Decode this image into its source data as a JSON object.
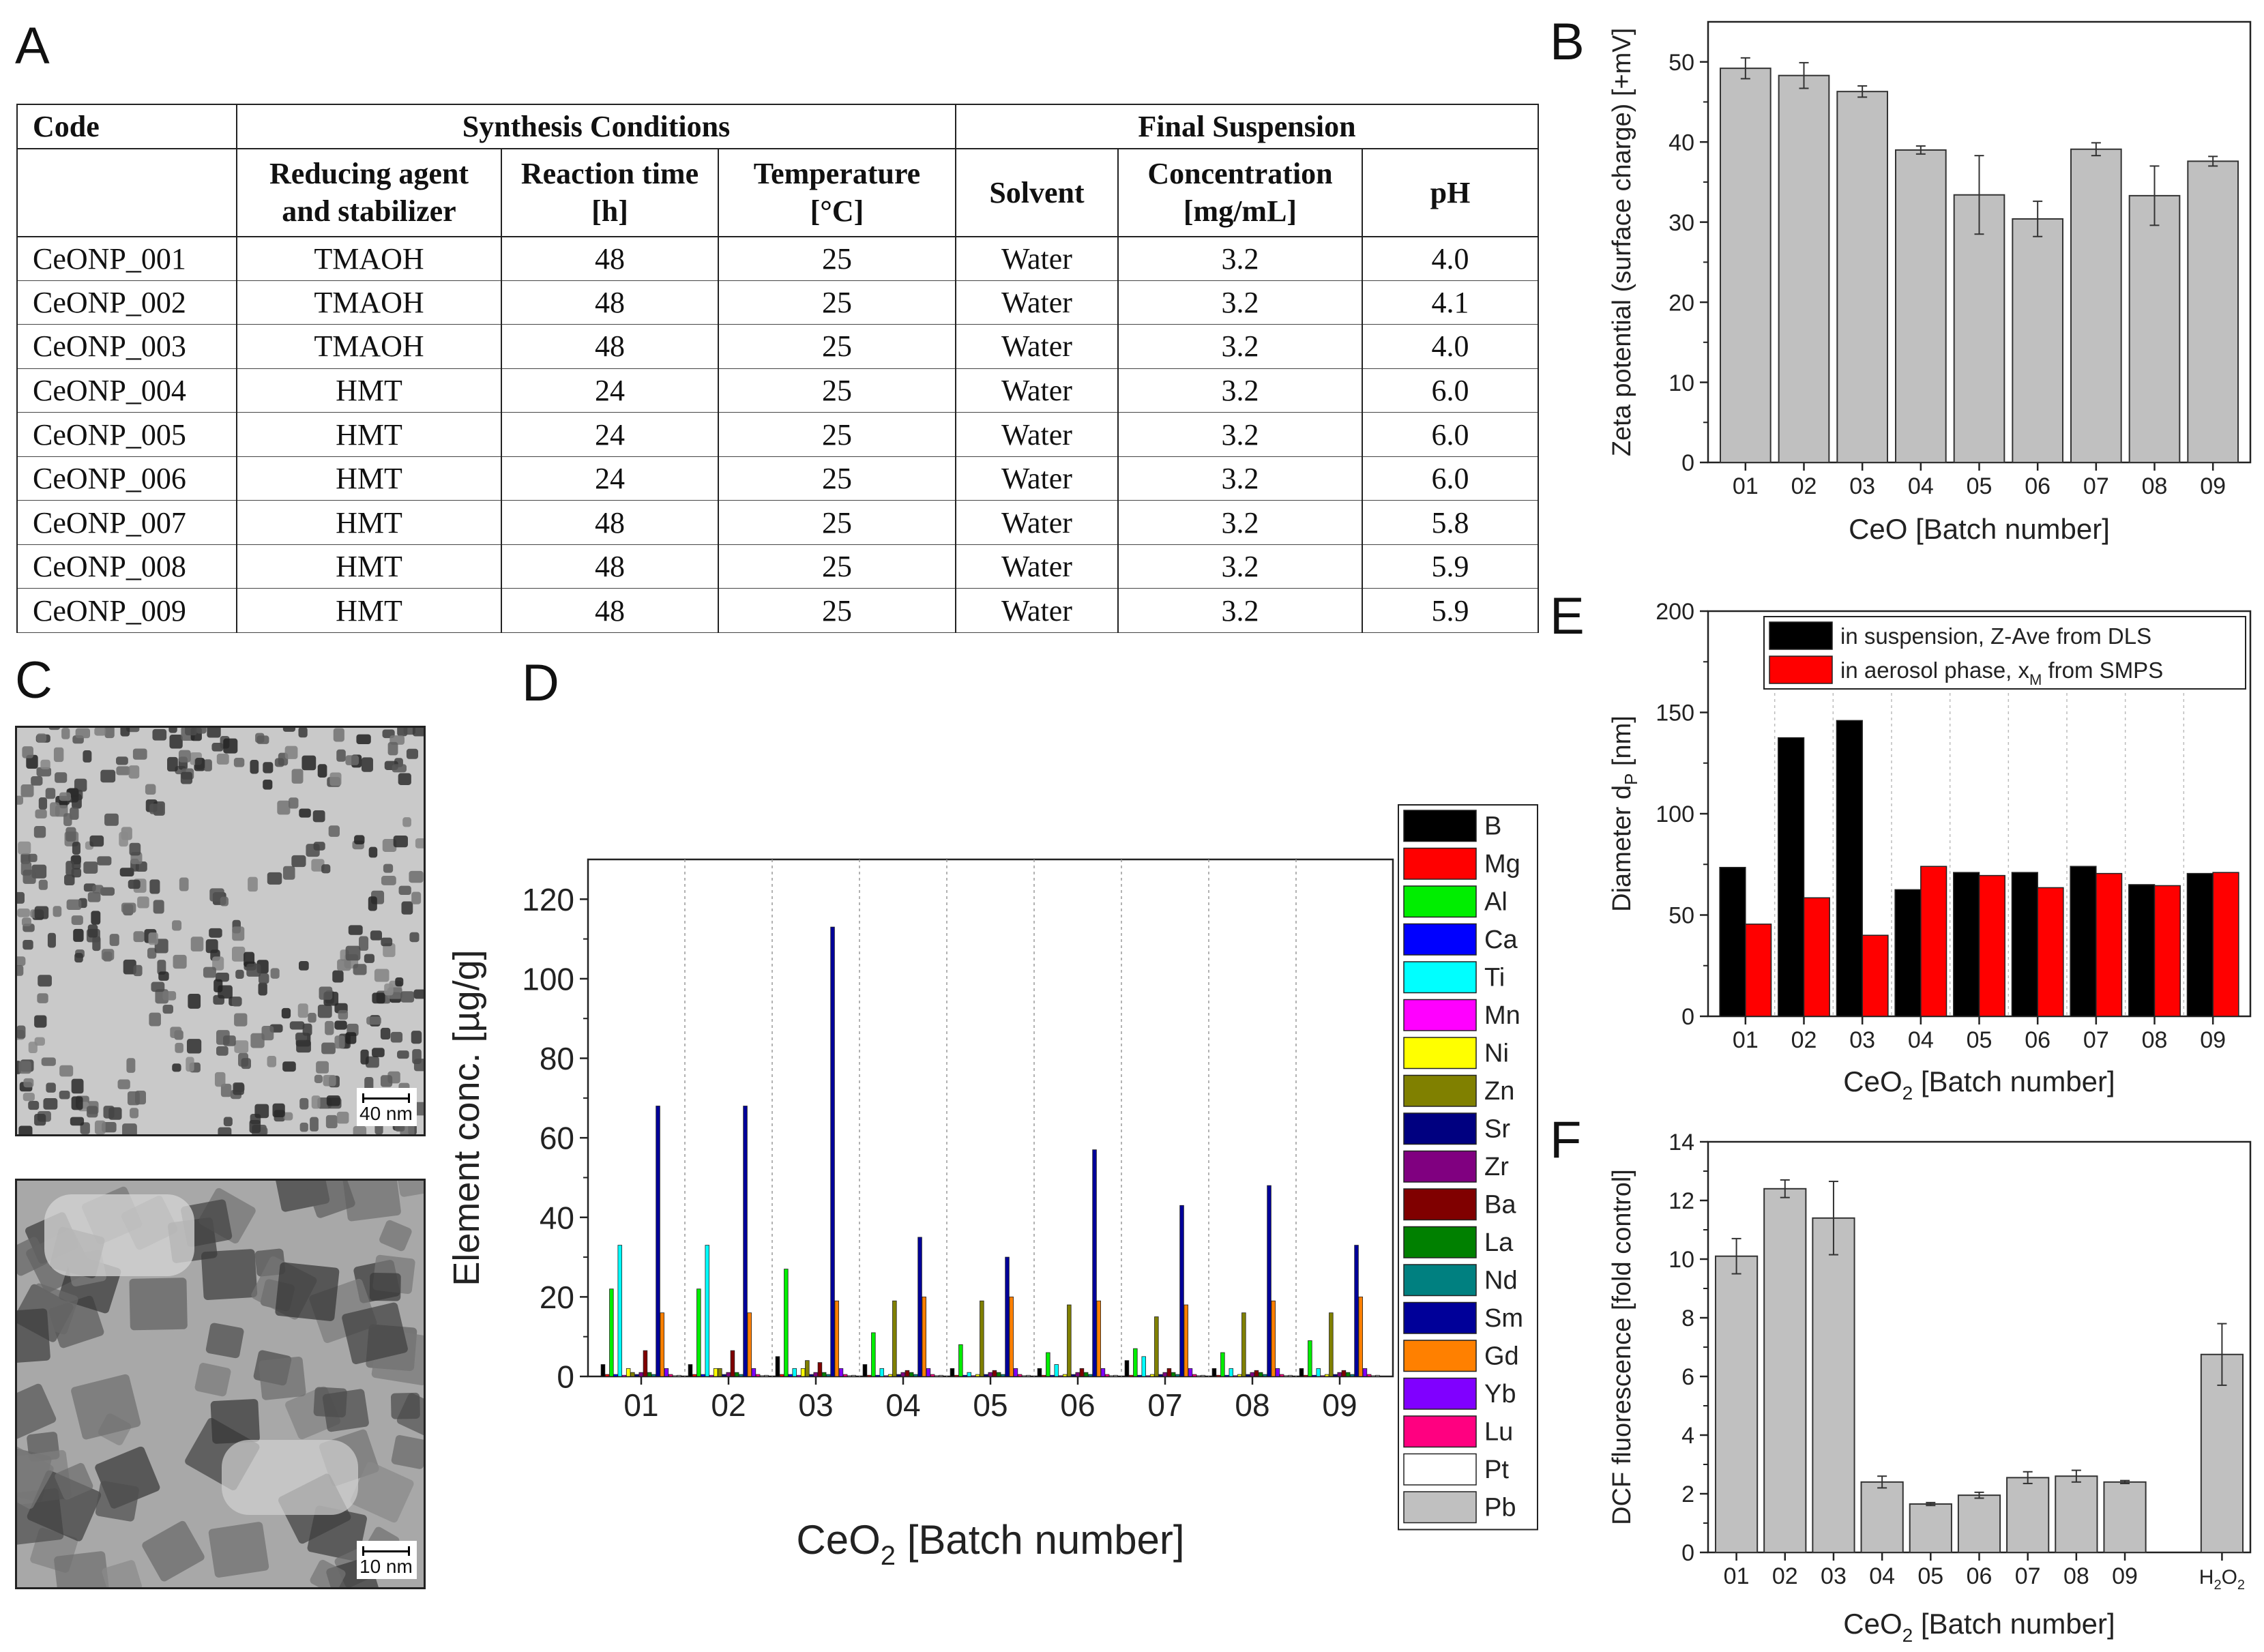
{
  "panels": {
    "a": "A",
    "b": "B",
    "c": "C",
    "d": "D",
    "e": "E",
    "f": "F"
  },
  "table": {
    "h_code": "Code",
    "h_synthesis": "Synthesis Conditions",
    "h_final": "Final Suspension",
    "h_reducing_1": "Reducing agent",
    "h_reducing_2": "and stabilizer",
    "h_time_1": "Reaction time",
    "h_time_2": "[h]",
    "h_temp_1": "Temperature",
    "h_temp_2": "[°C]",
    "h_solvent": "Solvent",
    "h_conc_1": "Concentration",
    "h_conc_2": "[mg/mL]",
    "h_ph": "pH",
    "rows": [
      {
        "code": "CeONP_001",
        "agent": "TMAOH",
        "time": "48",
        "temp": "25",
        "solvent": "Water",
        "conc": "3.2",
        "ph": "4.0"
      },
      {
        "code": "CeONP_002",
        "agent": "TMAOH",
        "time": "48",
        "temp": "25",
        "solvent": "Water",
        "conc": "3.2",
        "ph": "4.1"
      },
      {
        "code": "CeONP_003",
        "agent": "TMAOH",
        "time": "48",
        "temp": "25",
        "solvent": "Water",
        "conc": "3.2",
        "ph": "4.0"
      },
      {
        "code": "CeONP_004",
        "agent": "HMT",
        "time": "24",
        "temp": "25",
        "solvent": "Water",
        "conc": "3.2",
        "ph": "6.0"
      },
      {
        "code": "CeONP_005",
        "agent": "HMT",
        "time": "24",
        "temp": "25",
        "solvent": "Water",
        "conc": "3.2",
        "ph": "6.0"
      },
      {
        "code": "CeONP_006",
        "agent": "HMT",
        "time": "24",
        "temp": "25",
        "solvent": "Water",
        "conc": "3.2",
        "ph": "6.0"
      },
      {
        "code": "CeONP_007",
        "agent": "HMT",
        "time": "48",
        "temp": "25",
        "solvent": "Water",
        "conc": "3.2",
        "ph": "5.8"
      },
      {
        "code": "CeONP_008",
        "agent": "HMT",
        "time": "48",
        "temp": "25",
        "solvent": "Water",
        "conc": "3.2",
        "ph": "5.9"
      },
      {
        "code": "CeONP_009",
        "agent": "HMT",
        "time": "48",
        "temp": "25",
        "solvent": "Water",
        "conc": "3.2",
        "ph": "5.9"
      }
    ]
  },
  "tem": {
    "scale_top": "40 nm",
    "scale_bottom": "10 nm"
  },
  "chart_data": [
    {
      "id": "B",
      "type": "bar",
      "categories": [
        "01",
        "02",
        "03",
        "04",
        "05",
        "06",
        "07",
        "08",
        "09"
      ],
      "values": [
        49.2,
        48.3,
        46.3,
        39.0,
        33.4,
        30.4,
        39.1,
        33.3,
        37.6
      ],
      "errors": [
        1.3,
        1.6,
        0.7,
        0.5,
        4.9,
        2.2,
        0.8,
        3.7,
        0.6
      ],
      "ylabel": "Zeta potential (surface charge) [+mV]",
      "xlabel_main": "CeO [Batch number]",
      "ylim": [
        0,
        55
      ],
      "yticks": [
        0,
        10,
        20,
        30,
        40,
        50
      ],
      "color": "#c0c0c0"
    },
    {
      "id": "D",
      "type": "bar",
      "categories": [
        "01",
        "02",
        "03",
        "04",
        "05",
        "06",
        "07",
        "08",
        "09"
      ],
      "ylabel": "Element conc. [µg/g]",
      "xlabel_main": "CeO",
      "xlabel_sub": "2",
      "xlabel_rest": " [Batch number]",
      "ylim": [
        0,
        130
      ],
      "yticks": [
        0,
        20,
        40,
        60,
        80,
        100,
        120
      ],
      "series": [
        {
          "name": "B",
          "color": "#000000",
          "values": [
            3,
            3,
            5,
            3,
            2,
            2,
            4,
            2,
            2
          ]
        },
        {
          "name": "Mg",
          "color": "#ff0000",
          "values": [
            0.5,
            0.5,
            0.5,
            0.3,
            0.3,
            0.3,
            0.3,
            0.3,
            0.3
          ]
        },
        {
          "name": "Al",
          "color": "#00ee00",
          "values": [
            22,
            22,
            27,
            11,
            8,
            6,
            7,
            6,
            9
          ]
        },
        {
          "name": "Ca",
          "color": "#0000ff",
          "values": [
            0.5,
            0.5,
            0.5,
            0.3,
            0.3,
            0.3,
            0.3,
            0.3,
            0.3
          ]
        },
        {
          "name": "Ti",
          "color": "#00ffff",
          "values": [
            33,
            33,
            2,
            2,
            1,
            3,
            5,
            2,
            2
          ]
        },
        {
          "name": "Mn",
          "color": "#ff00ff",
          "values": [
            0.3,
            0.3,
            0.3,
            0.2,
            0.2,
            0.2,
            0.2,
            0.2,
            0.2
          ]
        },
        {
          "name": "Ni",
          "color": "#ffff00",
          "values": [
            2,
            2,
            2,
            0.5,
            0.5,
            0.5,
            0.5,
            0.5,
            0.5
          ]
        },
        {
          "name": "Zn",
          "color": "#808000",
          "values": [
            1,
            2,
            4,
            19,
            19,
            18,
            15,
            16,
            16
          ]
        },
        {
          "name": "Sr",
          "color": "#000080",
          "values": [
            0.5,
            0.5,
            0.5,
            0.5,
            0.5,
            0.5,
            0.5,
            0.5,
            0.5
          ]
        },
        {
          "name": "Zr",
          "color": "#800080",
          "values": [
            1,
            1,
            1,
            1,
            1,
            1,
            1,
            1,
            1
          ]
        },
        {
          "name": "Ba",
          "color": "#800000",
          "values": [
            6.5,
            6.5,
            3.5,
            1.5,
            1.5,
            2,
            2,
            1.5,
            1.5
          ]
        },
        {
          "name": "La",
          "color": "#008000",
          "values": [
            1,
            1,
            1,
            1,
            1,
            1,
            1,
            1,
            1
          ]
        },
        {
          "name": "Nd",
          "color": "#008080",
          "values": [
            0.5,
            0.5,
            0.5,
            0.5,
            0.5,
            0.5,
            0.5,
            0.5,
            0.5
          ]
        },
        {
          "name": "Sm",
          "color": "#000099",
          "values": [
            68,
            68,
            113,
            35,
            30,
            57,
            43,
            48,
            33
          ]
        },
        {
          "name": "Gd",
          "color": "#ff8000",
          "values": [
            16,
            16,
            19,
            20,
            20,
            19,
            18,
            19,
            20
          ]
        },
        {
          "name": "Yb",
          "color": "#8000ff",
          "values": [
            2,
            2,
            2,
            2,
            2,
            2,
            2,
            2,
            2
          ]
        },
        {
          "name": "Lu",
          "color": "#ff0080",
          "values": [
            0.5,
            0.5,
            0.5,
            0.5,
            0.5,
            0.5,
            0.5,
            0.5,
            0.5
          ]
        },
        {
          "name": "Pt",
          "color": "#ffffff",
          "values": [
            0.2,
            0.2,
            0.2,
            0.2,
            0.2,
            0.2,
            0.2,
            0.2,
            0.2
          ]
        },
        {
          "name": "Pb",
          "color": "#c0c0c0",
          "values": [
            0.3,
            0.3,
            0.3,
            0.3,
            0.3,
            0.3,
            0.3,
            0.3,
            0.3
          ]
        }
      ]
    },
    {
      "id": "E",
      "type": "bar",
      "categories": [
        "01",
        "02",
        "03",
        "04",
        "05",
        "06",
        "07",
        "08",
        "09"
      ],
      "ylabel": "Diameter d",
      "ylabel_sub": "P",
      "ylabel_rest": " [nm]",
      "xlabel_main": "CeO",
      "xlabel_sub": "2",
      "xlabel_rest": " [Batch number]",
      "ylim": [
        0,
        200
      ],
      "yticks": [
        0,
        50,
        100,
        150,
        200
      ],
      "series": [
        {
          "name": "in suspension, Z-Ave from DLS",
          "color": "#000000",
          "values": [
            73.5,
            137.5,
            146,
            62.5,
            71,
            71,
            74,
            65,
            70.5
          ]
        },
        {
          "name": "in aerosol phase,  x",
          "name_sub": "M",
          "name_rest": " from SMPS",
          "color": "#ff0000",
          "values": [
            45.5,
            58.5,
            40,
            74,
            69.5,
            63.5,
            70.5,
            64.5,
            71
          ]
        }
      ]
    },
    {
      "id": "F",
      "type": "bar",
      "categories": [
        "01",
        "02",
        "03",
        "04",
        "05",
        "06",
        "07",
        "08",
        "09",
        "H2O2"
      ],
      "cat_label_last_main": "H",
      "cat_label_last_a": "2",
      "cat_label_last_b": "O",
      "cat_label_last_c": "2",
      "values": [
        10.1,
        12.4,
        11.4,
        2.4,
        1.65,
        1.95,
        2.55,
        2.6,
        2.4,
        6.75
      ],
      "errors": [
        0.6,
        0.3,
        1.25,
        0.2,
        0.05,
        0.1,
        0.2,
        0.2,
        0.05,
        1.05
      ],
      "ylabel": "DCF fluorescence [fold control]",
      "xlabel_main": "CeO",
      "xlabel_sub": "2",
      "xlabel_rest": " [Batch number]",
      "ylim": [
        0,
        14
      ],
      "yticks": [
        0,
        2,
        4,
        6,
        8,
        10,
        12,
        14
      ],
      "color": "#c0c0c0"
    }
  ]
}
